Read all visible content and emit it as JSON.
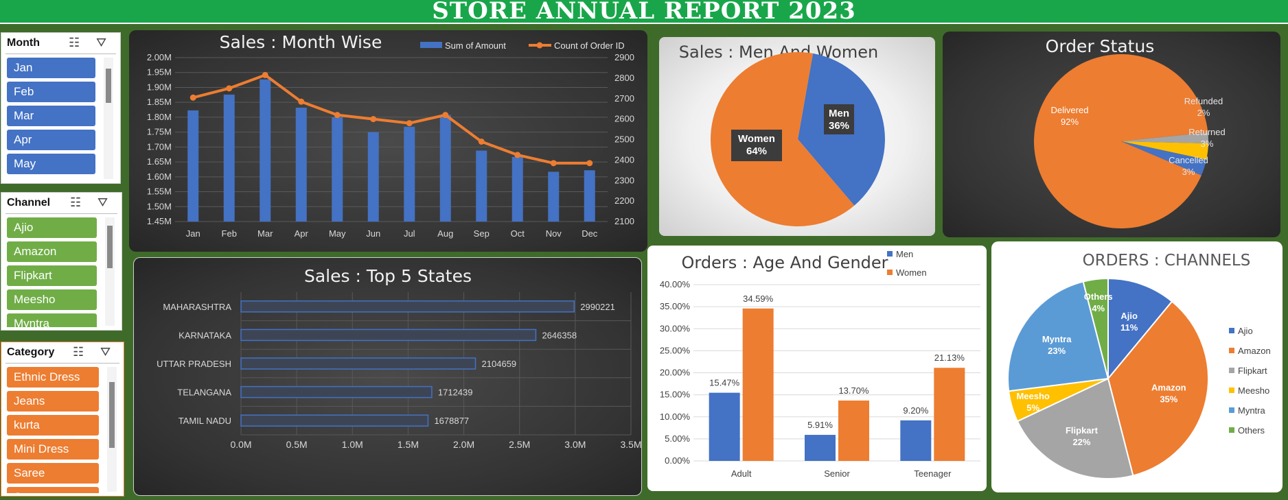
{
  "title": "STORE ANNUAL REPORT 2023",
  "slicers": {
    "month": {
      "title": "Month",
      "items": [
        "Jan",
        "Feb",
        "Mar",
        "Apr",
        "May"
      ],
      "color": "#4472c4"
    },
    "channel": {
      "title": "Channel",
      "items": [
        "Ajio",
        "Amazon",
        "Flipkart",
        "Meesho",
        "Myntra"
      ],
      "color": "#70ad47"
    },
    "category": {
      "title": "Category",
      "items": [
        "Ethnic Dress",
        "Jeans",
        "kurta",
        "Mini Dress",
        "Saree",
        "Set"
      ],
      "color": "#ed7d31"
    }
  },
  "chart_data": [
    {
      "id": "month",
      "type": "bar",
      "title": "Sales : Month Wise",
      "categories": [
        "Jan",
        "Feb",
        "Mar",
        "Apr",
        "May",
        "Jun",
        "Jul",
        "Aug",
        "Sep",
        "Oct",
        "Nov",
        "Dec"
      ],
      "series": [
        {
          "name": "Sum of Amount",
          "type": "bar",
          "axis": "left",
          "values": [
            1823000,
            1876000,
            1927000,
            1832000,
            1800000,
            1750000,
            1768000,
            1808000,
            1688000,
            1667000,
            1617000,
            1622000
          ]
        },
        {
          "name": "Count of Order ID",
          "type": "line",
          "axis": "right",
          "values": [
            2705,
            2750,
            2815,
            2685,
            2620,
            2600,
            2580,
            2620,
            2490,
            2425,
            2385,
            2385
          ]
        }
      ],
      "ylim_left": [
        1450000,
        2000000
      ],
      "ytick_left": [
        "2.00M",
        "1.95M",
        "1.90M",
        "1.85M",
        "1.80M",
        "1.75M",
        "1.70M",
        "1.65M",
        "1.60M",
        "1.55M",
        "1.50M",
        "1.45M"
      ],
      "ylim_right": [
        2100,
        2900
      ],
      "ytick_right": [
        "2900",
        "2800",
        "2700",
        "2600",
        "2500",
        "2400",
        "2300",
        "2200",
        "2100"
      ],
      "colors": {
        "bar": "#4472c4",
        "line": "#ed7d31"
      },
      "legend": "top-right"
    },
    {
      "id": "gender",
      "type": "pie",
      "title": "Sales : Men And Women",
      "slices": [
        {
          "label": "Men",
          "value": 36,
          "text": "36%",
          "color": "#4472c4"
        },
        {
          "label": "Women",
          "value": 64,
          "text": "64%",
          "color": "#ed7d31"
        }
      ]
    },
    {
      "id": "status",
      "type": "pie",
      "title": "Order Status",
      "slices": [
        {
          "label": "Delivered",
          "value": 92,
          "text": "92%",
          "color": "#ed7d31"
        },
        {
          "label": "Refunded",
          "value": 2,
          "text": "2%",
          "color": "#a5a5a5"
        },
        {
          "label": "Returned",
          "value": 3,
          "text": "3%",
          "color": "#ffc000"
        },
        {
          "label": "Cancelled",
          "value": 3,
          "text": "3%",
          "color": "#4472c4"
        }
      ]
    },
    {
      "id": "states",
      "type": "bar",
      "orientation": "horizontal",
      "title": "Sales : Top 5 States",
      "categories": [
        "MAHARASHTRA",
        "KARNATAKA",
        "UTTAR PRADESH",
        "TELANGANA",
        "TAMIL NADU"
      ],
      "values": [
        2990221,
        2646358,
        2104659,
        1712439,
        1678877
      ],
      "xlim": [
        0,
        3500000
      ],
      "xticks": [
        "0.0M",
        "0.5M",
        "1.0M",
        "1.5M",
        "2.0M",
        "2.5M",
        "3.0M",
        "3.5M"
      ]
    },
    {
      "id": "agegender",
      "type": "bar",
      "title": "Orders : Age And Gender",
      "categories": [
        "Adult",
        "Senior",
        "Teenager"
      ],
      "series": [
        {
          "name": "Men",
          "values": [
            15.47,
            5.91,
            9.2
          ],
          "labels": [
            "15.47%",
            "5.91%",
            "9.20%"
          ],
          "color": "#4472c4"
        },
        {
          "name": "Women",
          "values": [
            34.59,
            13.7,
            21.13
          ],
          "labels": [
            "34.59%",
            "13.70%",
            "21.13%"
          ],
          "color": "#ed7d31"
        }
      ],
      "ylim": [
        0,
        40
      ],
      "yticks": [
        "40.00%",
        "35.00%",
        "30.00%",
        "25.00%",
        "20.00%",
        "15.00%",
        "10.00%",
        "5.00%",
        "0.00%"
      ],
      "legend": "top-right"
    },
    {
      "id": "channels",
      "type": "pie",
      "title": "ORDERS : CHANNELS",
      "slices": [
        {
          "label": "Ajio",
          "value": 11,
          "text": "11%",
          "color": "#4472c4"
        },
        {
          "label": "Amazon",
          "value": 35,
          "text": "35%",
          "color": "#ed7d31"
        },
        {
          "label": "Flipkart",
          "value": 22,
          "text": "22%",
          "color": "#a5a5a5"
        },
        {
          "label": "Meesho",
          "value": 5,
          "text": "5%",
          "color": "#ffc000"
        },
        {
          "label": "Myntra",
          "value": 23,
          "text": "23%",
          "color": "#5b9bd5"
        },
        {
          "label": "Others",
          "value": 4,
          "text": "4%",
          "color": "#70ad47"
        }
      ],
      "legend": "right"
    }
  ]
}
